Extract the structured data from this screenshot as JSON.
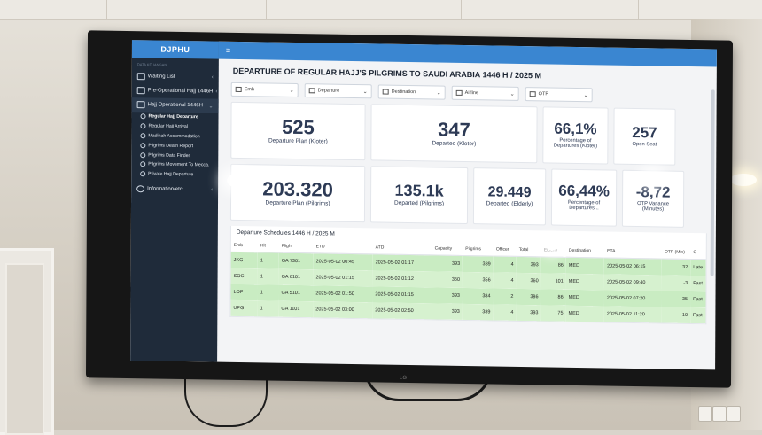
{
  "sidebar": {
    "brand": "DJPHU",
    "section_label": "DATA KEUANGAN",
    "items": [
      {
        "label": "Waiting List"
      },
      {
        "label": "Pre-Operational Hajj 1446H"
      },
      {
        "label": "Hajj Operational 1446H"
      }
    ],
    "subitems": [
      {
        "label": "Regular Hajj Departure"
      },
      {
        "label": "Regular Hajj Arrival"
      },
      {
        "label": "Madinah Accommodation"
      },
      {
        "label": "Pilgrims Death Report"
      },
      {
        "label": "Pilgrims Data Finder"
      },
      {
        "label": "Pilgrims Movement To Mecca."
      },
      {
        "label": "Private Hajj Departure"
      }
    ],
    "info_item": {
      "label": "Information/etc"
    }
  },
  "topbar": {
    "menu_icon": "≡"
  },
  "page_title": "DEPARTURE OF REGULAR HAJJ'S PILGRIMS TO SAUDI ARABIA 1446 H / 2025 M",
  "filters": [
    "Emb",
    "Departure",
    "Destination",
    "Airline",
    "OTP"
  ],
  "kpis_row1": [
    {
      "value": "525",
      "label": "Departure Plan (Kloter)"
    },
    {
      "value": "347",
      "label": "Departed (Kloter)"
    },
    {
      "value": "66,1%",
      "label": "Percentage of Departures (Kloter)"
    },
    {
      "value": "257",
      "label": "Open Seat"
    }
  ],
  "kpis_row2": [
    {
      "value": "203.320",
      "label": "Departure Plan (Pilgrims)"
    },
    {
      "value": "135.1k",
      "label": "Departed (Pilgrims)"
    },
    {
      "value": "29.449",
      "label": "Departed (Elderly)"
    },
    {
      "value": "66,44%",
      "label": "Percentage of Departures..."
    },
    {
      "value": "-8,72",
      "label": "OTP Variance (Minutes)"
    }
  ],
  "table": {
    "title": "Departure Schedules 1446 H / 2025 M",
    "headers": [
      "Emb",
      "Klt",
      "Flight",
      "ETD",
      "ATD",
      "Capacity",
      "Pilgrims",
      "Officer",
      "Total",
      "Elderly",
      "Destination",
      "ETA",
      "OTP (Min)",
      "O"
    ],
    "rows": [
      [
        "JKG",
        "1",
        "GA 7301",
        "2025-05-02 00:45",
        "2025-05-02 01:17",
        "393",
        "389",
        "4",
        "393",
        "86",
        "MED",
        "2025-05-02 06:15",
        "32",
        "Late"
      ],
      [
        "SOC",
        "1",
        "GA 6101",
        "2025-05-02 01:15",
        "2025-05-02 01:12",
        "360",
        "356",
        "4",
        "360",
        "101",
        "MED",
        "2025-05-02 09:40",
        "-3",
        "Fast"
      ],
      [
        "LOP",
        "1",
        "GA 5101",
        "2025-05-02 01:50",
        "2025-05-02 01:15",
        "393",
        "384",
        "2",
        "386",
        "86",
        "MED",
        "2025-05-02 07:20",
        "-35",
        "Fast"
      ],
      [
        "UPG",
        "1",
        "GA 1101",
        "2025-05-02 03:00",
        "2025-05-02 02:50",
        "393",
        "389",
        "4",
        "393",
        "75",
        "MED",
        "2025-05-02 11:20",
        "-10",
        "Fast"
      ]
    ]
  },
  "tv_brand": "LG"
}
